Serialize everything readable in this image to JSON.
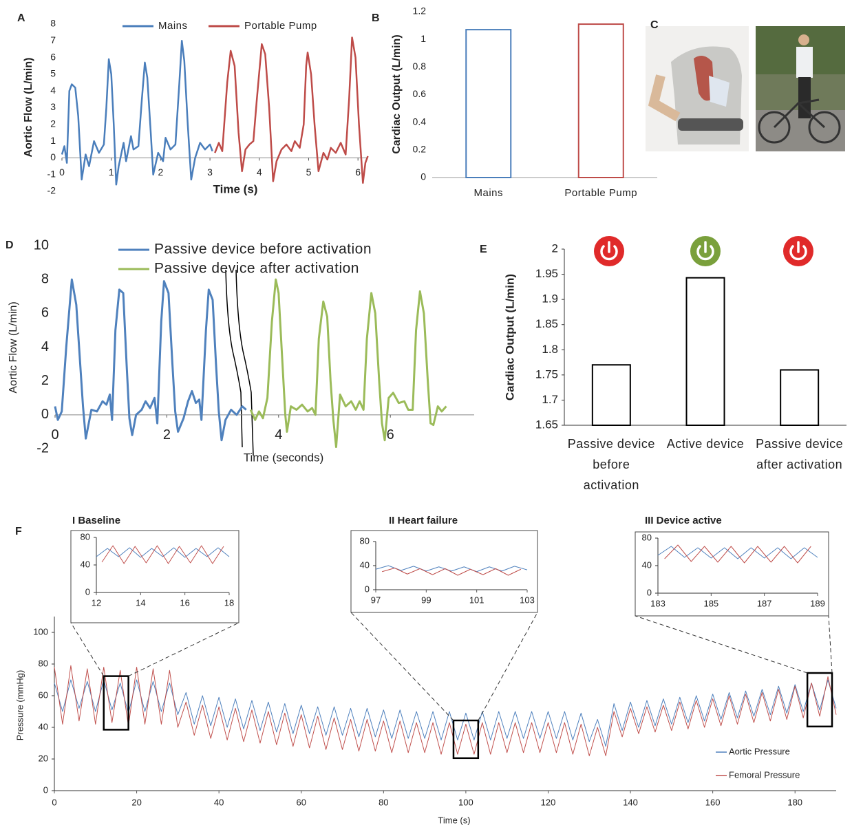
{
  "chart_data": [
    {
      "panel": "A",
      "type": "line",
      "xlabel": "Time (s)",
      "ylabel": "Aortic Flow (L/min)",
      "xlim": [
        0,
        6.2
      ],
      "ylim": [
        -2,
        8
      ],
      "xticks": [
        0,
        1,
        2,
        3,
        4,
        5,
        6
      ],
      "yticks": [
        -2,
        -1,
        0,
        1,
        2,
        3,
        4,
        5,
        6,
        7,
        8
      ],
      "legend": "top",
      "series": [
        {
          "name": "Mains",
          "color": "#4a7ebb",
          "x": [
            0,
            0.05,
            0.1,
            0.15,
            0.2,
            0.27,
            0.33,
            0.4,
            0.48,
            0.55,
            0.65,
            0.75,
            0.85,
            0.9,
            0.95,
            1.0,
            1.05,
            1.1,
            1.15,
            1.25,
            1.3,
            1.4,
            1.45,
            1.55,
            1.62,
            1.68,
            1.73,
            1.8,
            1.85,
            1.95,
            2.05,
            2.1,
            2.2,
            2.3,
            2.38,
            2.43,
            2.48,
            2.55,
            2.62,
            2.7,
            2.8,
            2.9,
            3.0,
            3.05
          ],
          "values": [
            0.2,
            0.7,
            -0.3,
            4.0,
            4.4,
            4.2,
            2.5,
            -1.3,
            0.2,
            -0.5,
            1.0,
            0.3,
            0.8,
            3.0,
            5.9,
            5.0,
            2.0,
            -1.6,
            -0.5,
            0.9,
            -0.2,
            1.3,
            0.5,
            0.7,
            3.5,
            5.7,
            4.8,
            1.5,
            -1.0,
            0.3,
            -0.2,
            1.2,
            0.5,
            0.8,
            4.5,
            7.0,
            5.8,
            2.0,
            -1.3,
            0.0,
            0.9,
            0.5,
            0.8,
            0.4
          ]
        },
        {
          "name": "Portable Pump",
          "color": "#be4b48",
          "x": [
            3.1,
            3.18,
            3.25,
            3.35,
            3.42,
            3.5,
            3.58,
            3.65,
            3.72,
            3.8,
            3.88,
            3.95,
            4.05,
            4.12,
            4.2,
            4.28,
            4.35,
            4.45,
            4.55,
            4.65,
            4.72,
            4.82,
            4.9,
            4.95,
            4.98,
            5.05,
            5.12,
            5.2,
            5.3,
            5.38,
            5.45,
            5.55,
            5.65,
            5.75,
            5.82,
            5.88,
            5.95,
            6.02,
            6.1,
            6.15,
            6.2
          ],
          "values": [
            0.3,
            0.9,
            0.4,
            4.5,
            6.4,
            5.5,
            1.5,
            -0.8,
            0.5,
            0.8,
            1.0,
            3.5,
            6.8,
            6.2,
            3.0,
            -1.4,
            -0.2,
            0.5,
            0.8,
            0.4,
            1.0,
            0.6,
            2.0,
            5.5,
            6.3,
            5.0,
            2.0,
            -0.8,
            0.3,
            -0.1,
            0.6,
            0.3,
            0.9,
            0.2,
            3.5,
            7.2,
            6.0,
            2.0,
            -1.5,
            -0.3,
            0.1
          ]
        }
      ]
    },
    {
      "panel": "B",
      "type": "bar",
      "ylabel": "Cardiac Output (L/min)",
      "categories": [
        "Mains",
        "Portable Pump"
      ],
      "values": [
        1.07,
        1.11
      ],
      "colors": [
        "#4a7ebb",
        "#be4b48"
      ],
      "ylim": [
        0,
        1.2
      ],
      "yticks": [
        0,
        0.2,
        0.4,
        0.6,
        0.8,
        1,
        1.2
      ]
    },
    {
      "panel": "D",
      "type": "line",
      "xlabel": "Time (seconds)",
      "ylabel": "Aortic Flow (L/min)",
      "xlim": [
        0,
        7.5
      ],
      "ylim": [
        -2,
        10
      ],
      "xticks": [
        0,
        2,
        4,
        6
      ],
      "yticks": [
        -2,
        0,
        2,
        4,
        6,
        8,
        10
      ],
      "legend": "upper left",
      "series": [
        {
          "name": "Passive device before activation",
          "color": "#4f81bd",
          "x": [
            0,
            0.05,
            0.12,
            0.2,
            0.3,
            0.38,
            0.45,
            0.5,
            0.55,
            0.65,
            0.75,
            0.85,
            0.92,
            0.98,
            1.02,
            1.08,
            1.15,
            1.22,
            1.28,
            1.33,
            1.38,
            1.45,
            1.55,
            1.62,
            1.7,
            1.78,
            1.83,
            1.9,
            1.95,
            2.03,
            2.1,
            2.15,
            2.2,
            2.3,
            2.38,
            2.45,
            2.52,
            2.58,
            2.62,
            2.7,
            2.75,
            2.82,
            2.88,
            2.93,
            2.98,
            3.05,
            3.15,
            3.25,
            3.35,
            3.42
          ],
          "values": [
            0.5,
            -0.3,
            0.2,
            4.0,
            8.0,
            6.5,
            3.0,
            0.5,
            -1.4,
            0.3,
            0.2,
            0.8,
            0.6,
            1.2,
            -0.3,
            5.0,
            7.4,
            7.2,
            3.0,
            -0.2,
            -1.2,
            0.0,
            0.3,
            0.8,
            0.4,
            1.0,
            -0.5,
            5.5,
            7.9,
            7.2,
            3.0,
            0.2,
            -1.0,
            -0.2,
            0.8,
            1.4,
            0.7,
            0.9,
            -0.3,
            5.0,
            7.4,
            6.8,
            3.0,
            0.2,
            -1.5,
            -0.3,
            0.3,
            0.0,
            0.5,
            0.3
          ]
        },
        {
          "name": "Passive device after activation",
          "color": "#9bbb59",
          "x": [
            3.5,
            3.58,
            3.65,
            3.72,
            3.8,
            3.88,
            3.95,
            4.0,
            4.07,
            4.12,
            4.15,
            4.22,
            4.32,
            4.42,
            4.52,
            4.6,
            4.66,
            4.72,
            4.8,
            4.87,
            4.93,
            4.98,
            5.03,
            5.1,
            5.2,
            5.3,
            5.38,
            5.45,
            5.52,
            5.58,
            5.66,
            5.73,
            5.8,
            5.85,
            5.9,
            5.97,
            6.05,
            6.15,
            6.25,
            6.32,
            6.4,
            6.46,
            6.53,
            6.6,
            6.67,
            6.72,
            6.77,
            6.85,
            6.92,
            7.0
          ],
          "values": [
            0.3,
            -0.3,
            0.2,
            -0.2,
            1.0,
            5.5,
            8.0,
            7.2,
            3.0,
            0.0,
            -1.0,
            0.5,
            0.3,
            0.6,
            0.2,
            0.4,
            0.0,
            4.5,
            6.7,
            5.8,
            2.0,
            -0.3,
            -1.9,
            1.2,
            0.5,
            0.8,
            0.3,
            0.8,
            0.3,
            4.5,
            7.2,
            6.0,
            2.0,
            -0.5,
            -1.5,
            1.0,
            1.3,
            0.7,
            0.8,
            0.3,
            0.3,
            5.0,
            7.3,
            6.0,
            2.0,
            -0.5,
            -0.6,
            0.5,
            0.2,
            0.5
          ]
        }
      ]
    },
    {
      "panel": "E",
      "type": "bar",
      "ylabel": "Cardiac Output (L/min)",
      "categories": [
        "Passive device before activation",
        "Active device",
        "Passive device after activation"
      ],
      "values": [
        1.77,
        1.943,
        1.76
      ],
      "colors": [
        "#000000",
        "#000000",
        "#000000"
      ],
      "ylim": [
        1.65,
        2
      ],
      "yticks": [
        1.65,
        1.7,
        1.75,
        1.8,
        1.85,
        1.9,
        1.95,
        2
      ]
    },
    {
      "panel": "F",
      "type": "line",
      "xlabel": "Time (s)",
      "ylabel": "Pressure (mmHg)",
      "xlim": [
        0,
        190
      ],
      "ylim": [
        0,
        110
      ],
      "xticks": [
        0,
        20,
        40,
        60,
        80,
        100,
        120,
        140,
        160,
        180
      ],
      "yticks": [
        0,
        20,
        40,
        60,
        80,
        100
      ],
      "legend": "lower right",
      "x": [
        0,
        2,
        4,
        6,
        8,
        10,
        12,
        14,
        16,
        18,
        20,
        22,
        24,
        26,
        28,
        30,
        32,
        34,
        36,
        38,
        40,
        42,
        44,
        46,
        48,
        50,
        52,
        54,
        56,
        58,
        60,
        62,
        64,
        66,
        68,
        70,
        72,
        74,
        76,
        78,
        80,
        82,
        84,
        86,
        88,
        90,
        92,
        94,
        96,
        98,
        100,
        102,
        104,
        106,
        108,
        110,
        112,
        114,
        116,
        118,
        120,
        122,
        124,
        126,
        128,
        130,
        132,
        134,
        136,
        138,
        140,
        142,
        144,
        146,
        148,
        150,
        152,
        154,
        156,
        158,
        160,
        162,
        164,
        166,
        168,
        170,
        172,
        174,
        176,
        178,
        180,
        182,
        184,
        186,
        188,
        190
      ],
      "series": [
        {
          "name": "Aortic Pressure",
          "color": "#4f81bd",
          "values": [
            68,
            50,
            70,
            52,
            69,
            50,
            70,
            51,
            68,
            49,
            70,
            50,
            69,
            50,
            68,
            48,
            62,
            42,
            60,
            41,
            59,
            40,
            58,
            39,
            57,
            38,
            56,
            37,
            55,
            36,
            54,
            36,
            53,
            35,
            53,
            35,
            52,
            34,
            52,
            34,
            51,
            33,
            51,
            33,
            50,
            33,
            50,
            32,
            50,
            32,
            49,
            32,
            50,
            32,
            50,
            33,
            50,
            33,
            50,
            33,
            50,
            33,
            50,
            32,
            49,
            31,
            45,
            28,
            55,
            38,
            56,
            40,
            57,
            41,
            58,
            42,
            59,
            43,
            60,
            44,
            61,
            45,
            62,
            46,
            63,
            47,
            64,
            48,
            66,
            49,
            67,
            50,
            68,
            51,
            70,
            52
          ]
        },
        {
          "name": "Femoral Pressure",
          "color": "#c0504d",
          "values": [
            78,
            42,
            79,
            44,
            77,
            42,
            78,
            43,
            76,
            41,
            78,
            42,
            77,
            42,
            76,
            40,
            56,
            35,
            54,
            33,
            53,
            32,
            52,
            31,
            51,
            30,
            50,
            29,
            49,
            28,
            48,
            27,
            47,
            26,
            46,
            26,
            45,
            25,
            45,
            25,
            44,
            24,
            44,
            24,
            43,
            24,
            43,
            23,
            43,
            23,
            42,
            23,
            43,
            23,
            43,
            24,
            43,
            24,
            43,
            24,
            43,
            24,
            43,
            23,
            42,
            22,
            40,
            22,
            50,
            34,
            52,
            36,
            53,
            37,
            54,
            38,
            56,
            39,
            57,
            40,
            58,
            41,
            60,
            42,
            61,
            43,
            62,
            44,
            64,
            45,
            66,
            46,
            68,
            47,
            72,
            48
          ]
        }
      ]
    },
    {
      "type": "line",
      "title": "I Baseline",
      "xlim": [
        12,
        18
      ],
      "ylim": [
        0,
        80
      ],
      "xticks": [
        12,
        14,
        16,
        18
      ],
      "yticks": [
        0,
        40,
        80
      ],
      "series": [
        {
          "color": "#4f81bd",
          "x": [
            12,
            12.5,
            13,
            13.5,
            14,
            14.5,
            15,
            15.5,
            16,
            16.5,
            17,
            17.5,
            18
          ],
          "values": [
            52,
            64,
            52,
            65,
            51,
            64,
            52,
            65,
            51,
            64,
            52,
            65,
            52
          ]
        },
        {
          "color": "#c0504d",
          "x": [
            12.25,
            12.75,
            13.25,
            13.75,
            14.25,
            14.75,
            15.25,
            15.75,
            16.25,
            16.75,
            17.25,
            17.75
          ],
          "values": [
            44,
            68,
            42,
            67,
            43,
            68,
            42,
            67,
            43,
            68,
            42,
            67
          ]
        }
      ]
    },
    {
      "type": "line",
      "title": "II Heart failure",
      "xlim": [
        97,
        103
      ],
      "ylim": [
        0,
        80
      ],
      "xticks": [
        97,
        99,
        101,
        103
      ],
      "yticks": [
        0,
        40,
        80
      ],
      "series": [
        {
          "color": "#4f81bd",
          "x": [
            97,
            97.5,
            98,
            98.5,
            99,
            99.5,
            100,
            100.5,
            101,
            101.5,
            102,
            102.5,
            103
          ],
          "values": [
            34,
            40,
            32,
            39,
            31,
            38,
            31,
            38,
            30,
            38,
            31,
            39,
            33
          ]
        },
        {
          "color": "#c0504d",
          "x": [
            97.25,
            97.75,
            98.25,
            98.75,
            99.25,
            99.75,
            100.25,
            100.75,
            101.25,
            101.75,
            102.25,
            102.75
          ],
          "values": [
            30,
            36,
            26,
            35,
            25,
            35,
            24,
            34,
            25,
            35,
            24,
            34
          ]
        }
      ]
    },
    {
      "type": "line",
      "title": "III Device active",
      "xlim": [
        183,
        189
      ],
      "ylim": [
        0,
        80
      ],
      "xticks": [
        183,
        185,
        187,
        189
      ],
      "yticks": [
        0,
        40,
        80
      ],
      "series": [
        {
          "color": "#4f81bd",
          "x": [
            183,
            183.5,
            184,
            184.5,
            185,
            185.5,
            186,
            186.5,
            187,
            187.5,
            188,
            188.5,
            189
          ],
          "values": [
            55,
            68,
            52,
            66,
            51,
            66,
            50,
            66,
            51,
            66,
            50,
            66,
            52
          ]
        },
        {
          "color": "#c0504d",
          "x": [
            183.25,
            183.75,
            184.25,
            184.75,
            185.25,
            185.75,
            186.25,
            186.75,
            187.25,
            187.75,
            188.25,
            188.75
          ],
          "values": [
            50,
            70,
            46,
            68,
            45,
            68,
            44,
            68,
            45,
            68,
            44,
            68
          ]
        }
      ]
    }
  ],
  "photo_panel": {
    "label": "C"
  }
}
